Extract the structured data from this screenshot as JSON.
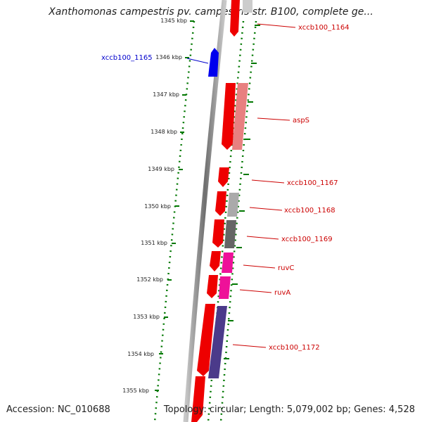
{
  "title": "Xanthomonas campestris pv. campestris str. B100, complete ge...",
  "footer": {
    "accession": "Accession: NC_010688",
    "info": "Topology: circular; Length: 5,079,002 bp; Genes: 4,528"
  },
  "ticks": [
    "1345 kbp",
    "1346 kbp",
    "1347 kbp",
    "1348 kbp",
    "1349 kbp",
    "1350 kbp",
    "1351 kbp",
    "1352 kbp",
    "1353 kbp",
    "1354 kbp",
    "1355 kbp"
  ],
  "genes": {
    "inner": "xccb100_1165",
    "outer": [
      "xccb100_1164",
      "aspS",
      "xccb100_1167",
      "xccb100_1168",
      "xccb100_1169",
      "ruvC",
      "ruvA",
      "xccb100_1172"
    ]
  },
  "colors": {
    "cds": "#ee0000",
    "cds_inner": "#0000ee",
    "label_outer": "#cc0000",
    "label_inner": "#0000cc",
    "backbone": "#777777",
    "gc_skew_dots": "#007700",
    "aspS_feature": "#e88080",
    "ruv_feature": "#ee1199",
    "feature_gray": "#999999",
    "xccb100_1172_feature": "#4b3a8a"
  }
}
